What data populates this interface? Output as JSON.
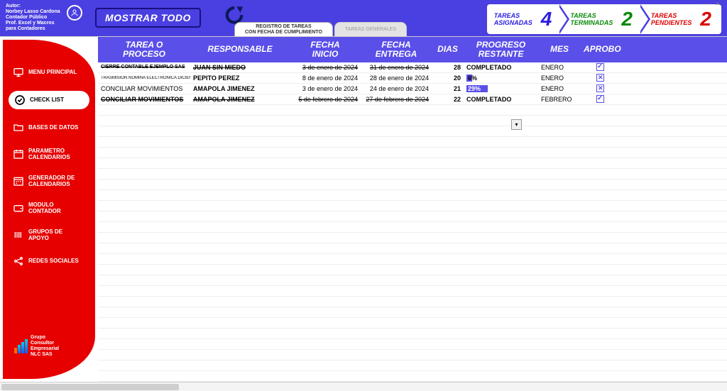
{
  "author": {
    "label": "Autor:",
    "name": "Norbey Lasso Cardona",
    "role": "Contador Público",
    "course": "Prof. Excel y Macros para Contadores"
  },
  "top": {
    "show_all": "MOSTRAR TODO",
    "tabs": [
      {
        "label": "REGISTRO DE TAREAS\nCON FECHA DE CUMPLIMIENTO",
        "active": true
      },
      {
        "label": "TAREAS GENERALES",
        "active": false
      }
    ],
    "stats": [
      {
        "label": "TAREAS\nASIGNADAS",
        "value": "4",
        "cls": "c-asig"
      },
      {
        "label": "TAREAS\nTERMINADAS",
        "value": "2",
        "cls": "c-term"
      },
      {
        "label": "TAREAS\nPENDIENTES",
        "value": "2",
        "cls": "c-pend"
      }
    ]
  },
  "sidebar": {
    "items": [
      {
        "label": "MENU PRINCIPAL",
        "icon": "monitor",
        "active": false
      },
      {
        "label": "CHECK LIST",
        "icon": "check",
        "active": true
      },
      {
        "label": "BASES DE DATOS",
        "icon": "folder",
        "active": false
      },
      {
        "label": "PARAMETRO\nCALENDARIOS",
        "icon": "calendar",
        "active": false
      },
      {
        "label": "GENERADOR DE\nCALENDARIOS",
        "icon": "calendar2",
        "active": false
      },
      {
        "label": "MODULO\nCONTADOR",
        "icon": "wallet",
        "active": false
      },
      {
        "label": "GRUPOS DE\nAPOYO",
        "icon": "group",
        "active": false
      },
      {
        "label": "REDES SOCIALES",
        "icon": "share",
        "active": false
      }
    ],
    "logo": "Grupo\nConsultor\nEmpresarial\nNLC SAS"
  },
  "table": {
    "headers": {
      "tarea": "TAREA O\nPROCESO",
      "responsable": "RESPONSABLE",
      "fecha_inicio": "FECHA\nINICIO",
      "fecha_entrega": "FECHA\nENTREGA",
      "dias": "DIAS",
      "progreso": "PROGRESO\nRESTANTE",
      "mes": "MES",
      "aprobo": "APROBO"
    },
    "rows": [
      {
        "tarea": "CIERRE CONTABLE EJEMPLO SAS",
        "responsable": "JUAN SIN MIEDO",
        "fecha_inicio": "3 de enero de 2024",
        "fecha_entrega": "31 de enero de 2024",
        "dias": "28",
        "progreso": "COMPLETADO",
        "progreso_type": "done",
        "mes": "ENERO",
        "aprobo": "checked",
        "strike": true
      },
      {
        "tarea": "TRASMISION NOMINA ELECTRONICA DICIEMBRE",
        "responsable": "PEPITO PEREZ",
        "fecha_inicio": "8 de enero de 2024",
        "fecha_entrega": "28 de enero de 2024",
        "dias": "20",
        "progreso": "6%",
        "progreso_type": "bar-small",
        "mes": "ENERO",
        "aprobo": "x",
        "strike": false
      },
      {
        "tarea": "CONCILIAR MOVIMIENTOS",
        "responsable": "AMAPOLA JIMENEZ",
        "fecha_inicio": "3 de enero de 2024",
        "fecha_entrega": "24 de enero de 2024",
        "dias": "21",
        "progreso": "29%",
        "progreso_type": "bar",
        "mes": "ENERO",
        "aprobo": "x",
        "strike": false
      },
      {
        "tarea": "CONCILIAR MOVIMIENTOS",
        "responsable": "AMAPOLA JIMENEZ",
        "fecha_inicio": "5 de febrero de 2024",
        "fecha_entrega": "27 de febrero de 2024",
        "dias": "22",
        "progreso": "COMPLETADO",
        "progreso_type": "done",
        "mes": "FEBRERO",
        "aprobo": "checked",
        "strike": true
      }
    ],
    "empty_rows": 26,
    "colors": {
      "header_bg": "#5a4fe8",
      "topbar_bg": "#4a3fe0",
      "sidebar_bg": "#e60000"
    }
  }
}
